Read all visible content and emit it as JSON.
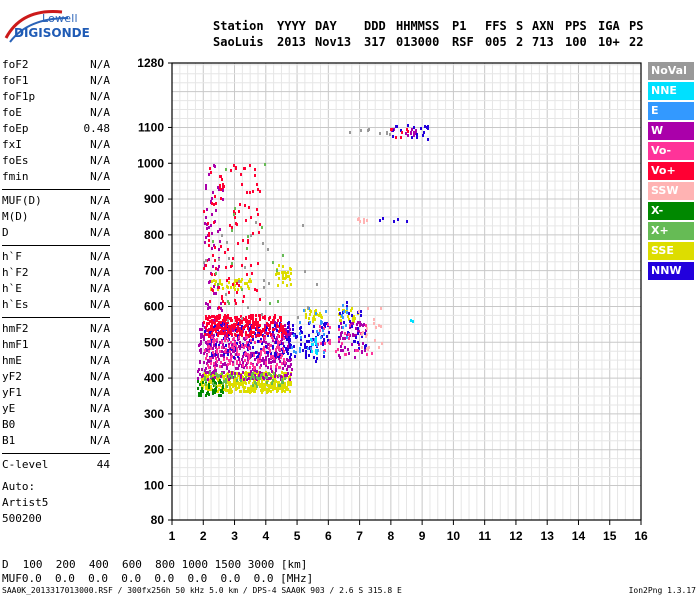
{
  "logo": {
    "top": "Lowell",
    "bottom": "DIGISONDE"
  },
  "header": {
    "labels": [
      "Station",
      "YYYY",
      "DAY",
      "DDD",
      "HHMMSS",
      "P1",
      "FFS",
      "S",
      "AXN",
      "PPS",
      "IGA",
      "PS"
    ],
    "values": [
      "SaoLuis",
      "2013",
      "Nov13",
      "317",
      "013000",
      "RSF",
      "005",
      "2",
      "713",
      "100",
      "10+",
      "22"
    ]
  },
  "params": [
    {
      "label": "foF2",
      "value": "N/A"
    },
    {
      "label": "foF1",
      "value": "N/A"
    },
    {
      "label": "foF1p",
      "value": "N/A"
    },
    {
      "label": "foE",
      "value": "N/A"
    },
    {
      "label": "foEp",
      "value": "0.48"
    },
    {
      "label": "fxI",
      "value": "N/A"
    },
    {
      "label": "foEs",
      "value": "N/A"
    },
    {
      "label": "fmin",
      "value": "N/A"
    },
    {
      "label": "MUF(D)",
      "value": "N/A",
      "sep_before": true
    },
    {
      "label": "M(D)",
      "value": "N/A"
    },
    {
      "label": "D",
      "value": "N/A"
    },
    {
      "label": "h`F",
      "value": "N/A",
      "sep_before": true
    },
    {
      "label": "h`F2",
      "value": "N/A"
    },
    {
      "label": "h`E",
      "value": "N/A"
    },
    {
      "label": "h`Es",
      "value": "N/A"
    },
    {
      "label": "hmF2",
      "value": "N/A",
      "sep_before": true
    },
    {
      "label": "hmF1",
      "value": "N/A"
    },
    {
      "label": "hmE",
      "value": "N/A"
    },
    {
      "label": "yF2",
      "value": "N/A"
    },
    {
      "label": "yF1",
      "value": "N/A"
    },
    {
      "label": "yE",
      "value": "N/A"
    },
    {
      "label": "B0",
      "value": "N/A"
    },
    {
      "label": "B1",
      "value": "N/A"
    },
    {
      "label": "C-level",
      "value": "44",
      "sep_before": true
    }
  ],
  "autoscale": {
    "label": "Auto:",
    "artist": "Artist5",
    "version": "500200"
  },
  "legend": [
    {
      "label": "NoVal",
      "color": "#999999"
    },
    {
      "label": "NNE",
      "color": "#00e0ff"
    },
    {
      "label": "E",
      "color": "#3399ff"
    },
    {
      "label": "W",
      "color": "#aa00aa"
    },
    {
      "label": "Vo-",
      "color": "#ff3399"
    },
    {
      "label": "Vo+",
      "color": "#ff0033"
    },
    {
      "label": "SSW",
      "color": "#ffb3b3"
    },
    {
      "label": "X-",
      "color": "#008800"
    },
    {
      "label": "X+",
      "color": "#66bb55"
    },
    {
      "label": "SSE",
      "color": "#dddd00"
    },
    {
      "label": "NNW",
      "color": "#2200dd"
    }
  ],
  "bottom": {
    "d_label": "D",
    "d_values": "100  200  400  600  800 1000 1500 3000 [km]",
    "muf_label": "MUF",
    "muf_values": "0.0  0.0  0.0  0.0  0.0  0.0  0.0  0.0 [MHz]"
  },
  "footer": {
    "left": "SAA0K_2013317013000.RSF / 300fx256h 50 kHz 5.0 km / DPS-4 SAA0K 903 / 2.6 S 315.8 E",
    "right": "Ion2Png 1.3.17"
  },
  "chart_data": {
    "type": "scatter",
    "xlim": [
      1,
      16
    ],
    "ylim": [
      80,
      1280
    ],
    "xticks": [
      "1",
      "2",
      "3",
      "4",
      "5",
      "6",
      "7",
      "8",
      "9",
      "10",
      "11",
      "12",
      "13",
      "14",
      "15",
      "16"
    ],
    "yticks": [
      "80",
      "100",
      "200",
      "300",
      "400",
      "500",
      "600",
      "700",
      "800",
      "900",
      "1000",
      "1100",
      "1280"
    ],
    "grid": true,
    "legend_position": "right",
    "clusters": [
      {
        "series": "SSE",
        "x": [
          1.9,
          4.8
        ],
        "y": [
          365,
          420
        ],
        "n": 420
      },
      {
        "series": "SSE",
        "x": [
          2.2,
          3.5
        ],
        "y": [
          650,
          680
        ],
        "n": 40
      },
      {
        "series": "SSE",
        "x": [
          4.3,
          4.8
        ],
        "y": [
          660,
          720
        ],
        "n": 30
      },
      {
        "series": "SSE",
        "x": [
          5.2,
          5.8
        ],
        "y": [
          560,
          600
        ],
        "n": 25
      },
      {
        "series": "SSE",
        "x": [
          6.3,
          7.0
        ],
        "y": [
          560,
          600
        ],
        "n": 20
      },
      {
        "series": "W",
        "x": [
          1.8,
          4.8
        ],
        "y": [
          400,
          560
        ],
        "n": 450
      },
      {
        "series": "W",
        "x": [
          2.0,
          2.6
        ],
        "y": [
          560,
          1000
        ],
        "n": 60
      },
      {
        "series": "W",
        "x": [
          6.3,
          7.2
        ],
        "y": [
          460,
          560
        ],
        "n": 50
      },
      {
        "series": "W",
        "x": [
          8.0,
          8.8
        ],
        "y": [
          1080,
          1100
        ],
        "n": 12
      },
      {
        "series": "NNW",
        "x": [
          2.0,
          4.8
        ],
        "y": [
          460,
          560
        ],
        "n": 150
      },
      {
        "series": "NNW",
        "x": [
          4.8,
          6.0
        ],
        "y": [
          450,
          560
        ],
        "n": 60
      },
      {
        "series": "NNW",
        "x": [
          6.3,
          7.2
        ],
        "y": [
          480,
          620
        ],
        "n": 30
      },
      {
        "series": "NNW",
        "x": [
          8.0,
          9.2
        ],
        "y": [
          1070,
          1110
        ],
        "n": 18
      },
      {
        "series": "NNW",
        "x": [
          7.6,
          8.5
        ],
        "y": [
          840,
          850
        ],
        "n": 6
      },
      {
        "series": "Vo+",
        "x": [
          2.0,
          4.6
        ],
        "y": [
          520,
          580
        ],
        "n": 260
      },
      {
        "series": "Vo+",
        "x": [
          2.0,
          3.8
        ],
        "y": [
          600,
          1000
        ],
        "n": 110
      },
      {
        "series": "Vo+",
        "x": [
          7.8,
          8.6
        ],
        "y": [
          1070,
          1100
        ],
        "n": 8
      },
      {
        "series": "Vo-",
        "x": [
          2.0,
          4.6
        ],
        "y": [
          430,
          520
        ],
        "n": 150
      },
      {
        "series": "Vo-",
        "x": [
          5.6,
          7.4
        ],
        "y": [
          460,
          560
        ],
        "n": 30
      },
      {
        "series": "X-",
        "x": [
          1.8,
          2.6
        ],
        "y": [
          355,
          400
        ],
        "n": 50
      },
      {
        "series": "X+",
        "x": [
          2.0,
          4.6
        ],
        "y": [
          380,
          420
        ],
        "n": 60
      },
      {
        "series": "X+",
        "x": [
          2.2,
          4.6
        ],
        "y": [
          600,
          1000
        ],
        "n": 20
      },
      {
        "series": "E",
        "x": [
          4.8,
          5.9
        ],
        "y": [
          460,
          600
        ],
        "n": 30
      },
      {
        "series": "E",
        "x": [
          6.4,
          6.6
        ],
        "y": [
          500,
          620
        ],
        "n": 10
      },
      {
        "series": "NNE",
        "x": [
          5.4,
          5.6
        ],
        "y": [
          470,
          530
        ],
        "n": 10
      },
      {
        "series": "NNE",
        "x": [
          8.6,
          8.7
        ],
        "y": [
          560,
          570
        ],
        "n": 2
      },
      {
        "series": "SSW",
        "x": [
          6.9,
          7.7
        ],
        "y": [
          480,
          600
        ],
        "n": 20
      },
      {
        "series": "SSW",
        "x": [
          6.9,
          7.2
        ],
        "y": [
          840,
          850
        ],
        "n": 6
      },
      {
        "series": "NoVal",
        "x": [
          2.0,
          5.8
        ],
        "y": [
          560,
          900
        ],
        "n": 25
      },
      {
        "series": "NoVal",
        "x": [
          6.5,
          8.4
        ],
        "y": [
          1080,
          1100
        ],
        "n": 8
      }
    ]
  }
}
